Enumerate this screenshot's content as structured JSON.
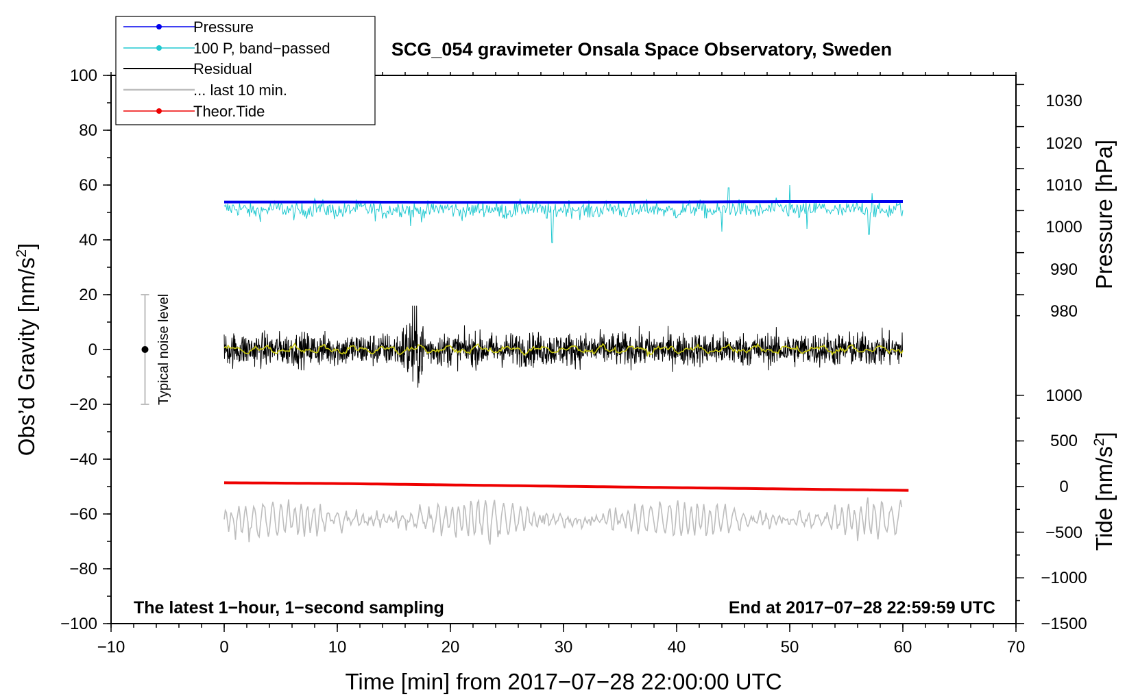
{
  "chart_data": {
    "type": "line",
    "title": "SCG_054 gravimeter Onsala Space Observatory, Sweden",
    "xlabel": "Time [min] from 2017−07−28 22:00:00 UTC",
    "ylabel_left_prefix": "Obs’d Gravity [nm/s",
    "ylabel_left_sup": "2",
    "ylabel_left_suffix": "]",
    "ylabel_right_pressure": "Pressure [hPa]",
    "ylabel_right_tide_prefix": "Tide [nm/s",
    "ylabel_right_tide_sup": "2",
    "ylabel_right_tide_suffix": "]",
    "xlim": [
      -10,
      70
    ],
    "ylim": [
      -100,
      100
    ],
    "x_ticks": [
      -10,
      0,
      10,
      20,
      30,
      40,
      50,
      60,
      70
    ],
    "x_tick_labels": [
      "−10",
      "0",
      "10",
      "20",
      "30",
      "40",
      "50",
      "60",
      "70"
    ],
    "y_ticks": [
      -100,
      -80,
      -60,
      -40,
      -20,
      0,
      20,
      40,
      60,
      80,
      100
    ],
    "y_tick_labels": [
      "−100",
      "−80",
      "−60",
      "−40",
      "−20",
      "0",
      "20",
      "40",
      "60",
      "80",
      "100"
    ],
    "pressure_axis": {
      "ticks": [
        980,
        990,
        1000,
        1010,
        1020,
        1030
      ],
      "tick_labels": [
        "980",
        "990",
        "1000",
        "1010",
        "1020",
        "1030"
      ],
      "gravity_at_980": 20,
      "gravity_per_hpa": 1.5333
    },
    "tide_axis": {
      "ticks": [
        -1500,
        -1000,
        -500,
        0,
        500,
        1000
      ],
      "tick_labels": [
        "−1500",
        "−1000",
        "−500",
        "0",
        "500",
        "1000"
      ],
      "gravity_at_0": -50,
      "gravity_per_unit": 0.0333
    },
    "annotation_left": "The latest 1−hour, 1−second sampling",
    "annotation_right": "End at 2017−07−28 22:59:59 UTC",
    "noise_bar": {
      "label": "Typical noise level",
      "x": -7,
      "center": 0,
      "low": -20,
      "high": 20
    },
    "legend": [
      {
        "label": "Pressure",
        "color": "#0000ee",
        "marker": true
      },
      {
        "label": "100 P, band−passed",
        "color": "#20c8d0",
        "marker": true
      },
      {
        "label": "Residual",
        "color": "#000000",
        "marker": false
      },
      {
        "label": "... last 10 min.",
        "color": "#bdbdbd",
        "marker": false
      },
      {
        "label": "Theor.Tide",
        "color": "#ee0000",
        "marker": true
      }
    ],
    "series": [
      {
        "name": "Pressure",
        "color": "#0000ee",
        "x": [
          0,
          10,
          20,
          30,
          40,
          50,
          60
        ],
        "values": [
          53.8,
          53.8,
          53.7,
          53.7,
          53.8,
          54.0,
          54.0
        ]
      },
      {
        "name": "100 P, band−passed",
        "color": "#20c8d0",
        "x_range": [
          0,
          60
        ],
        "mean": 51,
        "noise_amplitude": 2.2,
        "spikes": [
          {
            "x": 8,
            "value": 55
          },
          {
            "x": 16.5,
            "value": 45
          },
          {
            "x": 29,
            "value": 39
          },
          {
            "x": 44,
            "value": 43
          },
          {
            "x": 44.6,
            "value": 59
          },
          {
            "x": 50,
            "value": 60
          },
          {
            "x": 51.5,
            "value": 44
          },
          {
            "x": 57,
            "value": 42
          },
          {
            "x": 57.3,
            "value": 57
          }
        ]
      },
      {
        "name": "Residual",
        "color": "#000000",
        "x_range": [
          0,
          60
        ],
        "mean": 0,
        "noise_amplitude": 5.5,
        "burst_x": [
          15.5,
          18
        ],
        "burst_max": 16,
        "burst_min": -18
      },
      {
        "name": "Residual smoothed",
        "color": "#c9c910",
        "x_range": [
          0,
          60
        ],
        "mean": 0,
        "amplitude": 1.5
      },
      {
        "name": "... last 10 min.",
        "color": "#bdbdbd",
        "x_range": [
          0,
          60
        ],
        "mean": -62,
        "amplitude": 6,
        "max": -53,
        "min": -73
      },
      {
        "name": "Theor.Tide",
        "color": "#ee0000",
        "x": [
          0,
          10,
          20,
          30,
          40,
          50,
          60.5
        ],
        "values": [
          -48.6,
          -48.9,
          -49.4,
          -49.9,
          -50.4,
          -50.9,
          -51.4
        ]
      }
    ]
  }
}
